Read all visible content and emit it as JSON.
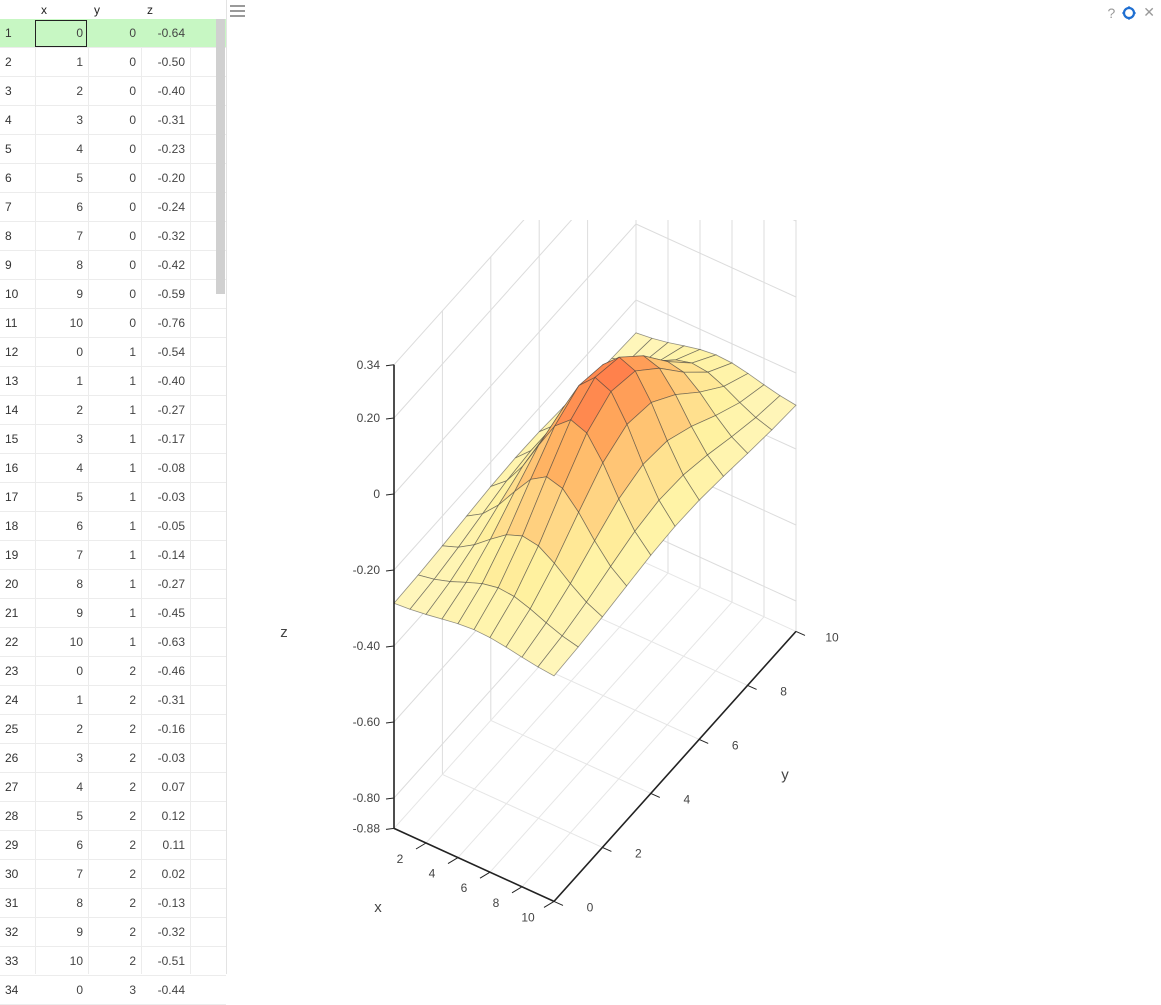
{
  "columns": [
    "x",
    "y",
    "z"
  ],
  "rows": [
    [
      "1",
      "0",
      "0",
      "-0.64"
    ],
    [
      "2",
      "1",
      "0",
      "-0.50"
    ],
    [
      "3",
      "2",
      "0",
      "-0.40"
    ],
    [
      "4",
      "3",
      "0",
      "-0.31"
    ],
    [
      "5",
      "4",
      "0",
      "-0.23"
    ],
    [
      "6",
      "5",
      "0",
      "-0.20"
    ],
    [
      "7",
      "6",
      "0",
      "-0.24"
    ],
    [
      "8",
      "7",
      "0",
      "-0.32"
    ],
    [
      "9",
      "8",
      "0",
      "-0.42"
    ],
    [
      "10",
      "9",
      "0",
      "-0.59"
    ],
    [
      "11",
      "10",
      "0",
      "-0.76"
    ],
    [
      "12",
      "0",
      "1",
      "-0.54"
    ],
    [
      "13",
      "1",
      "1",
      "-0.40"
    ],
    [
      "14",
      "2",
      "1",
      "-0.27"
    ],
    [
      "15",
      "3",
      "1",
      "-0.17"
    ],
    [
      "16",
      "4",
      "1",
      "-0.08"
    ],
    [
      "17",
      "5",
      "1",
      "-0.03"
    ],
    [
      "18",
      "6",
      "1",
      "-0.05"
    ],
    [
      "19",
      "7",
      "1",
      "-0.14"
    ],
    [
      "20",
      "8",
      "1",
      "-0.27"
    ],
    [
      "21",
      "9",
      "1",
      "-0.45"
    ],
    [
      "22",
      "10",
      "1",
      "-0.63"
    ],
    [
      "23",
      "0",
      "2",
      "-0.46"
    ],
    [
      "24",
      "1",
      "2",
      "-0.31"
    ],
    [
      "25",
      "2",
      "2",
      "-0.16"
    ],
    [
      "26",
      "3",
      "2",
      "-0.03"
    ],
    [
      "27",
      "4",
      "2",
      "0.07"
    ],
    [
      "28",
      "5",
      "2",
      "0.12"
    ],
    [
      "29",
      "6",
      "2",
      "0.11"
    ],
    [
      "30",
      "7",
      "2",
      "0.02"
    ],
    [
      "31",
      "8",
      "2",
      "-0.13"
    ],
    [
      "32",
      "9",
      "2",
      "-0.32"
    ],
    [
      "33",
      "10",
      "2",
      "-0.51"
    ],
    [
      "34",
      "0",
      "3",
      "-0.44"
    ]
  ],
  "selected_row": 0,
  "toolbar": {
    "help": "?",
    "close": "✕"
  },
  "icons": {
    "menu": "hamburger-menu-icon",
    "help": "help-icon",
    "settings": "gear-icon",
    "close": "close-icon"
  },
  "chart_data": {
    "type": "surface",
    "x_label": "x",
    "y_label": "y",
    "z_label": "z",
    "x_range": [
      0,
      10
    ],
    "y_range": [
      0,
      10
    ],
    "z_range": [
      -0.88,
      0.34
    ],
    "x_ticks": [
      "2",
      "4",
      "6",
      "8",
      "10"
    ],
    "y_ticks": [
      "0",
      "2",
      "4",
      "6",
      "8",
      "10"
    ],
    "z_ticks": [
      "0.34",
      "0.20",
      "0",
      "-0.20",
      "-0.40",
      "-0.60",
      "-0.80",
      "-0.88"
    ],
    "colorscale": [
      "#4f7ff2",
      "#a9f1ff",
      "#ffffff",
      "#fff2a0",
      "#ffae5e",
      "#ff3a2f",
      "#a70012"
    ]
  }
}
